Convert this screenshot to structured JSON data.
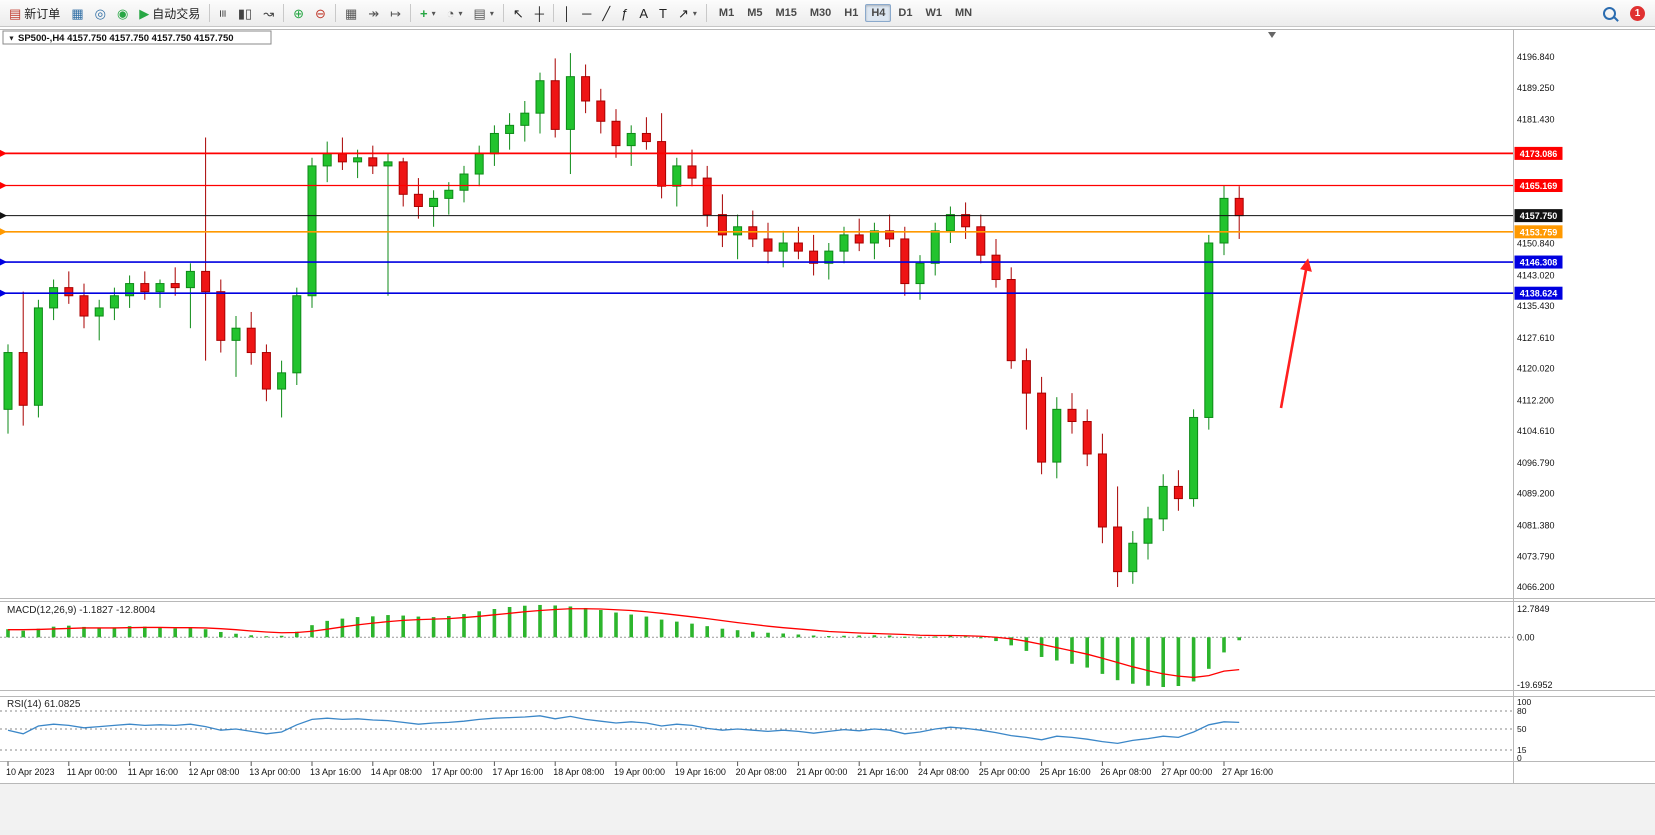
{
  "toolbar": {
    "groups": [
      {
        "name": "trade",
        "items": [
          {
            "name": "new-order",
            "icon": "new-order-icon",
            "glyph": "▤",
            "color": "#c0392b",
            "label": "新订单"
          },
          {
            "name": "charts-window",
            "icon": "charts-icon",
            "glyph": "▦",
            "color": "#2e6da4"
          },
          {
            "name": "profiles",
            "icon": "profiles-icon",
            "glyph": "◎",
            "color": "#2e6da4"
          },
          {
            "name": "sounds",
            "icon": "sound-icon",
            "glyph": "◉",
            "color": "#27a744"
          },
          {
            "name": "autotrading",
            "icon": "autotrading-icon",
            "glyph": "▶",
            "color": "#27a744",
            "label": "自动交易"
          }
        ]
      },
      {
        "name": "chart-type",
        "items": [
          {
            "name": "bar-chart-mode",
            "icon": "bars-icon",
            "glyph": "≡",
            "color": "#444",
            "rot": true
          },
          {
            "name": "candlestick-mode",
            "icon": "candles-icon",
            "glyph": "▮▯",
            "color": "#444"
          },
          {
            "name": "line-chart-mode",
            "icon": "line-chart-icon",
            "glyph": "↝",
            "color": "#444"
          }
        ]
      },
      {
        "name": "zoom",
        "items": [
          {
            "name": "zoom-in",
            "icon": "zoom-in-icon",
            "glyph": "⊕",
            "color": "#27a744"
          },
          {
            "name": "zoom-out",
            "icon": "zoom-out-icon",
            "glyph": "⊖",
            "color": "#c0392b"
          }
        ]
      },
      {
        "name": "window",
        "items": [
          {
            "name": "tile-windows",
            "icon": "tile-windows-icon",
            "glyph": "▦",
            "color": "#555"
          },
          {
            "name": "auto-scroll",
            "icon": "auto-scroll-icon",
            "glyph": "↠",
            "color": "#555"
          },
          {
            "name": "chart-shift",
            "icon": "chart-shift-icon",
            "glyph": "↦",
            "color": "#555"
          }
        ]
      },
      {
        "name": "insert",
        "items": [
          {
            "name": "indicators",
            "icon": "indicators-icon",
            "glyph": "+",
            "color": "#27a744",
            "caret": true
          },
          {
            "name": "periods",
            "icon": "periods-icon",
            "glyph": "◔",
            "color": "#555",
            "caret": true
          },
          {
            "name": "templates",
            "icon": "templates-icon",
            "glyph": "▤",
            "color": "#555",
            "caret": true
          }
        ]
      },
      {
        "name": "cursor",
        "items": [
          {
            "name": "cursor",
            "icon": "cursor-icon",
            "glyph": "↖",
            "color": "#222"
          },
          {
            "name": "crosshair",
            "icon": "crosshair-icon",
            "glyph": "┼",
            "color": "#222"
          }
        ]
      },
      {
        "name": "draw",
        "items": [
          {
            "name": "vertical-line-tool",
            "icon": "vline-icon",
            "glyph": "│",
            "color": "#222"
          },
          {
            "name": "horizontal-line-tool",
            "icon": "hline-icon",
            "glyph": "─",
            "color": "#222"
          },
          {
            "name": "trendline-tool",
            "icon": "trendline-icon",
            "glyph": "╱",
            "color": "#222"
          },
          {
            "name": "fibonacci-tool",
            "icon": "fibonacci-icon",
            "glyph": "ƒ",
            "color": "#222"
          },
          {
            "name": "text-tool",
            "icon": "text-icon",
            "glyph": "A",
            "color": "#222"
          },
          {
            "name": "text-label-tool",
            "icon": "text-label-icon",
            "glyph": "T",
            "color": "#222"
          },
          {
            "name": "arrows-tool",
            "icon": "arrows-icon",
            "glyph": "↗",
            "color": "#222",
            "caret": true
          }
        ]
      }
    ],
    "timeframes": {
      "items": [
        "M1",
        "M5",
        "M15",
        "M30",
        "H1",
        "H4",
        "D1",
        "W1",
        "MN"
      ],
      "active": "H4"
    },
    "notification_count": "1"
  },
  "chart": {
    "symbol_box": {
      "collapse_glyph": "▼",
      "text": "SP500-,H4 4157.750 4157.750 4157.750 4157.750"
    },
    "h_lines": [
      {
        "price": 4173.086,
        "label": "4173.086",
        "color": "#ff0000",
        "width": 1.8
      },
      {
        "price": 4165.169,
        "label": "4165.169",
        "color": "#ff0000",
        "width": 1.3
      },
      {
        "price": 4157.75,
        "label": "4157.750",
        "color": "#111111",
        "width": 1,
        "kind": "current"
      },
      {
        "price": 4153.759,
        "label": "4153.759",
        "color": "#ff9900",
        "width": 1.6
      },
      {
        "price": 4146.308,
        "label": "4146.308",
        "color": "#0000e0",
        "width": 1.6
      },
      {
        "price": 4138.624,
        "label": "4138.624",
        "color": "#0000e0",
        "width": 1.6
      }
    ],
    "price_axis_labels": [
      "4196.840",
      "4189.250",
      "4181.430",
      "4150.840",
      "4143.020",
      "4135.430",
      "4127.610",
      "4120.020",
      "4112.200",
      "4104.610",
      "4096.790",
      "4089.200",
      "4081.380",
      "4073.790",
      "4066.200"
    ],
    "arrow_color": "#ff1f1f",
    "colors": {
      "bull_fill": "#22c32e",
      "bull_stroke": "#0d8a17",
      "bear_fill": "#ee1515",
      "bear_stroke": "#a80000"
    }
  },
  "macd": {
    "label": "MACD(12,26,9) -1.1827 -12.8004",
    "axis_top": "12.7849",
    "axis_zero": "0.00",
    "axis_bottom": "-19.6952",
    "hist_color": "#2db52d",
    "signal_color": "#ff0000"
  },
  "rsi": {
    "label": "RSI(14) 61.0825",
    "line_color": "#3b87c8",
    "levels": [
      80,
      50,
      15
    ],
    "axis_labels": [
      {
        "v": 100,
        "t": "100"
      },
      {
        "v": 80,
        "t": "80"
      },
      {
        "v": 50,
        "t": "50"
      },
      {
        "v": 15,
        "t": "15"
      },
      {
        "v": 0,
        "t": "0"
      }
    ]
  },
  "time_axis": [
    "10 Apr 2023",
    "11 Apr 00:00",
    "11 Apr 16:00",
    "12 Apr 08:00",
    "13 Apr 00:00",
    "13 Apr 16:00",
    "14 Apr 08:00",
    "17 Apr 00:00",
    "17 Apr 16:00",
    "18 Apr 08:00",
    "19 Apr 00:00",
    "19 Apr 16:00",
    "20 Apr 08:00",
    "21 Apr 00:00",
    "21 Apr 16:00",
    "24 Apr 08:00",
    "25 Apr 00:00",
    "25 Apr 16:00",
    "26 Apr 08:00",
    "27 Apr 00:00",
    "27 Apr 16:00"
  ],
  "chart_data": {
    "type": "candlestick",
    "symbol": "SP500-",
    "timeframe": "H4",
    "price_range": [
      4063.5,
      4203.5
    ],
    "candles": [
      [
        4110,
        4126,
        4104,
        4124
      ],
      [
        4124,
        4139,
        4106,
        4111
      ],
      [
        4111,
        4137,
        4108,
        4135
      ],
      [
        4135,
        4142,
        4132,
        4140
      ],
      [
        4140,
        4144,
        4136,
        4138
      ],
      [
        4138,
        4141,
        4130,
        4133
      ],
      [
        4133,
        4137,
        4127,
        4135
      ],
      [
        4135,
        4140,
        4132,
        4138
      ],
      [
        4138,
        4143,
        4135,
        4141
      ],
      [
        4141,
        4144,
        4137,
        4139
      ],
      [
        4139,
        4142,
        4135,
        4141
      ],
      [
        4141,
        4145,
        4138,
        4140
      ],
      [
        4140,
        4146,
        4130,
        4144
      ],
      [
        4144,
        4177,
        4122,
        4139
      ],
      [
        4139,
        4142,
        4124,
        4127
      ],
      [
        4127,
        4133,
        4118,
        4130
      ],
      [
        4130,
        4134,
        4121,
        4124
      ],
      [
        4124,
        4126,
        4112,
        4115
      ],
      [
        4115,
        4122,
        4108,
        4119
      ],
      [
        4119,
        4140,
        4116,
        4138
      ],
      [
        4138,
        4172,
        4135,
        4170
      ],
      [
        4170,
        4176,
        4166,
        4173
      ],
      [
        4173,
        4177,
        4169,
        4171
      ],
      [
        4171,
        4174,
        4167,
        4172
      ],
      [
        4172,
        4175,
        4168,
        4170
      ],
      [
        4170,
        4173,
        4138,
        4171
      ],
      [
        4171,
        4172,
        4160,
        4163
      ],
      [
        4163,
        4167,
        4157,
        4160
      ],
      [
        4160,
        4164,
        4155,
        4162
      ],
      [
        4162,
        4166,
        4158,
        4164
      ],
      [
        4164,
        4170,
        4161,
        4168
      ],
      [
        4168,
        4175,
        4165,
        4173
      ],
      [
        4173,
        4180,
        4170,
        4178
      ],
      [
        4178,
        4183,
        4174,
        4180
      ],
      [
        4180,
        4186,
        4176,
        4183
      ],
      [
        4183,
        4193,
        4178,
        4191
      ],
      [
        4191,
        4196.5,
        4177,
        4179
      ],
      [
        4179,
        4197.8,
        4168,
        4192
      ],
      [
        4192,
        4195,
        4183,
        4186
      ],
      [
        4186,
        4189,
        4178,
        4181
      ],
      [
        4181,
        4184,
        4172,
        4175
      ],
      [
        4175,
        4180,
        4170,
        4178
      ],
      [
        4178,
        4182,
        4174,
        4176
      ],
      [
        4176,
        4183,
        4162,
        4165
      ],
      [
        4165,
        4172,
        4160,
        4170
      ],
      [
        4170,
        4174,
        4165,
        4167
      ],
      [
        4167,
        4170,
        4155,
        4158
      ],
      [
        4158,
        4163,
        4150,
        4153
      ],
      [
        4153,
        4158,
        4147,
        4155
      ],
      [
        4155,
        4159,
        4150,
        4152
      ],
      [
        4152,
        4156,
        4146,
        4149
      ],
      [
        4149,
        4154,
        4145,
        4151
      ],
      [
        4151,
        4155,
        4147,
        4149
      ],
      [
        4149,
        4153,
        4143,
        4146
      ],
      [
        4146,
        4151,
        4142,
        4149
      ],
      [
        4149,
        4155,
        4146,
        4153
      ],
      [
        4153,
        4157,
        4149,
        4151
      ],
      [
        4151,
        4156,
        4147,
        4154
      ],
      [
        4154,
        4158,
        4150,
        4152
      ],
      [
        4152,
        4155,
        4138,
        4141
      ],
      [
        4141,
        4148,
        4137,
        4146
      ],
      [
        4146,
        4156,
        4143,
        4154
      ],
      [
        4154,
        4160,
        4151,
        4158
      ],
      [
        4158,
        4161,
        4152,
        4155
      ],
      [
        4155,
        4158,
        4146,
        4148
      ],
      [
        4148,
        4152,
        4140,
        4142
      ],
      [
        4142,
        4145,
        4120,
        4122
      ],
      [
        4122,
        4125,
        4105,
        4114
      ],
      [
        4114,
        4118,
        4094,
        4097
      ],
      [
        4097,
        4113,
        4093,
        4110
      ],
      [
        4110,
        4114,
        4104,
        4107
      ],
      [
        4107,
        4110,
        4096,
        4099
      ],
      [
        4099,
        4104,
        4077,
        4081
      ],
      [
        4081,
        4091,
        4066.2,
        4070
      ],
      [
        4070,
        4080,
        4067,
        4077
      ],
      [
        4077,
        4086,
        4073,
        4083
      ],
      [
        4083,
        4094,
        4080,
        4091
      ],
      [
        4091,
        4095,
        4085,
        4088
      ],
      [
        4088,
        4110,
        4086,
        4108
      ],
      [
        4108,
        4153,
        4105,
        4151
      ],
      [
        4151,
        4165.3,
        4148,
        4162
      ],
      [
        4162,
        4165,
        4152,
        4157.75
      ]
    ],
    "macd": {
      "range": [
        -19.6952,
        12.7849
      ],
      "hist": [
        3.2,
        2.6,
        3.4,
        4.2,
        4.6,
        4.1,
        3.6,
        3.9,
        4.4,
        4.2,
        3.8,
        3.5,
        3.9,
        3.2,
        2.1,
        1.4,
        0.8,
        0.4,
        0.6,
        2.2,
        4.8,
        6.5,
        7.4,
        8.0,
        8.3,
        8.8,
        8.6,
        8.2,
        8.0,
        8.4,
        9.2,
        10.3,
        11.2,
        12.0,
        12.5,
        12.8,
        12.6,
        12.2,
        11.6,
        10.8,
        9.8,
        9.0,
        8.2,
        7.0,
        6.2,
        5.4,
        4.4,
        3.4,
        2.8,
        2.2,
        1.8,
        1.5,
        1.1,
        0.7,
        0.5,
        0.6,
        0.7,
        0.8,
        0.7,
        0.2,
        -0.2,
        0.3,
        0.6,
        0.4,
        -0.4,
        -1.5,
        -3.2,
        -5.4,
        -7.8,
        -9.2,
        -10.5,
        -12.0,
        -14.5,
        -17.0,
        -18.4,
        -19.2,
        -19.7,
        -19.3,
        -17.5,
        -12.5,
        -6.0,
        -1.1827
      ],
      "signal": [
        3.0,
        3.0,
        3.1,
        3.3,
        3.5,
        3.7,
        3.7,
        3.7,
        3.8,
        3.9,
        3.9,
        3.8,
        3.8,
        3.7,
        3.4,
        3.0,
        2.5,
        2.1,
        1.8,
        1.9,
        2.4,
        3.2,
        4.1,
        4.9,
        5.6,
        6.2,
        6.7,
        7.0,
        7.2,
        7.4,
        7.8,
        8.3,
        8.9,
        9.5,
        10.1,
        10.6,
        11.0,
        11.3,
        11.3,
        11.2,
        10.9,
        10.6,
        10.1,
        9.5,
        8.8,
        8.1,
        7.4,
        6.6,
        5.8,
        5.1,
        4.4,
        3.8,
        3.3,
        2.8,
        2.3,
        2.0,
        1.7,
        1.5,
        1.3,
        1.1,
        0.8,
        0.7,
        0.7,
        0.6,
        0.4,
        0.0,
        -0.6,
        -1.6,
        -2.8,
        -4.1,
        -5.4,
        -6.7,
        -8.3,
        -10.0,
        -11.7,
        -13.2,
        -14.5,
        -15.4,
        -15.9,
        -15.2,
        -13.4,
        -12.8004
      ]
    },
    "rsi": {
      "range": [
        0,
        100
      ],
      "values": [
        48,
        42,
        55,
        58,
        56,
        52,
        54,
        56,
        58,
        56,
        57,
        56,
        58,
        54,
        48,
        50,
        46,
        42,
        45,
        57,
        66,
        68,
        66,
        67,
        65,
        64,
        61,
        58,
        60,
        61,
        63,
        66,
        68,
        69,
        70,
        72,
        67,
        71,
        66,
        63,
        60,
        62,
        60,
        55,
        58,
        56,
        51,
        48,
        50,
        48,
        46,
        48,
        46,
        43,
        46,
        49,
        47,
        50,
        48,
        42,
        45,
        50,
        53,
        51,
        48,
        44,
        39,
        36,
        32,
        38,
        36,
        33,
        29,
        26,
        31,
        34,
        38,
        36,
        45,
        57,
        62,
        61.0825
      ]
    }
  }
}
